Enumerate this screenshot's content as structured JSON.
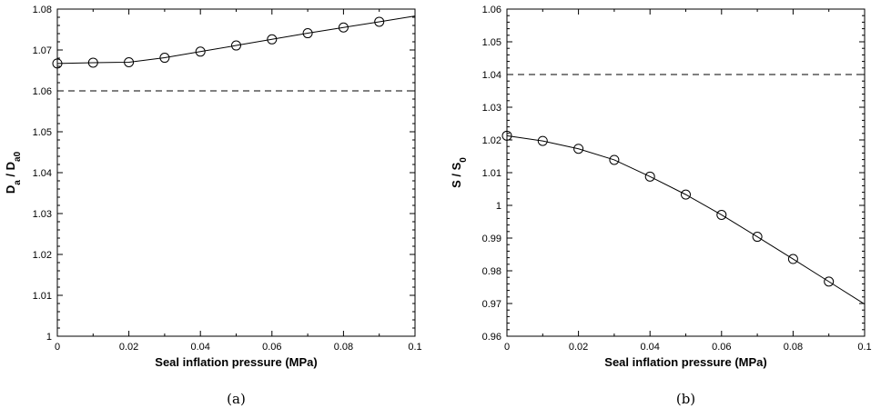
{
  "chart_data": [
    {
      "type": "line",
      "caption": "(a)",
      "xlabel": "Seal inflation pressure (MPa)",
      "ylabel": {
        "main1": "D",
        "sub1": "a",
        "sep": " / ",
        "main2": "D",
        "sub2": "a0"
      },
      "xlim": [
        0,
        0.1
      ],
      "ylim": [
        1,
        1.08
      ],
      "xticks": [
        0,
        0.02,
        0.04,
        0.06,
        0.08,
        0.1
      ],
      "xtick_labels": [
        "0",
        "0.02",
        "0.04",
        "0.06",
        "0.08",
        "0.1"
      ],
      "yticks": [
        1,
        1.01,
        1.02,
        1.03,
        1.04,
        1.05,
        1.06,
        1.07,
        1.08
      ],
      "ytick_labels": [
        "1",
        "1.01",
        "1.02",
        "1.03",
        "1.04",
        "1.05",
        "1.06",
        "1.07",
        "1.08"
      ],
      "grid": false,
      "series": [
        {
          "style": "solid-line-circle-markers",
          "x": [
            0,
            0.01,
            0.02,
            0.03,
            0.04,
            0.05,
            0.06,
            0.07,
            0.08,
            0.09,
            0.1
          ],
          "y": [
            1.0667,
            1.0669,
            1.067,
            1.0681,
            1.0696,
            1.0711,
            1.0726,
            1.0741,
            1.0755,
            1.0769,
            1.0783
          ],
          "markers_x": [
            0,
            0.01,
            0.02,
            0.03,
            0.04,
            0.05,
            0.06,
            0.07,
            0.08,
            0.09
          ]
        },
        {
          "style": "dashed-reference",
          "x": [
            0,
            0.1
          ],
          "y": [
            1.06,
            1.06
          ]
        }
      ]
    },
    {
      "type": "line",
      "caption": "(b)",
      "xlabel": "Seal inflation pressure (MPa)",
      "ylabel": {
        "main1": "S",
        "sub1": "",
        "sep": " / ",
        "main2": "S",
        "sub2": "0"
      },
      "xlim": [
        0,
        0.1
      ],
      "ylim": [
        0.96,
        1.06
      ],
      "xticks": [
        0,
        0.02,
        0.04,
        0.06,
        0.08,
        0.1
      ],
      "xtick_labels": [
        "0",
        "0.02",
        "0.04",
        "0.06",
        "0.08",
        "0.1"
      ],
      "yticks": [
        0.96,
        0.97,
        0.98,
        0.99,
        1.0,
        1.01,
        1.02,
        1.03,
        1.04,
        1.05,
        1.06
      ],
      "ytick_labels": [
        "0.96",
        "0.97",
        "0.98",
        "0.99",
        "1",
        "1.01",
        "1.02",
        "1.03",
        "1.04",
        "1.05",
        "1.06"
      ],
      "grid": false,
      "series": [
        {
          "style": "solid-line-circle-markers",
          "x": [
            0,
            0.01,
            0.02,
            0.03,
            0.04,
            0.05,
            0.06,
            0.07,
            0.08,
            0.09,
            0.1
          ],
          "y": [
            1.0213,
            1.0197,
            1.0173,
            1.0139,
            1.0088,
            1.0033,
            0.9971,
            0.9904,
            0.9836,
            0.9767,
            0.9698
          ],
          "markers_x": [
            0,
            0.01,
            0.02,
            0.03,
            0.04,
            0.05,
            0.06,
            0.07,
            0.08,
            0.09
          ]
        },
        {
          "style": "dashed-reference",
          "x": [
            0,
            0.1
          ],
          "y": [
            1.04,
            1.04
          ]
        }
      ]
    }
  ]
}
